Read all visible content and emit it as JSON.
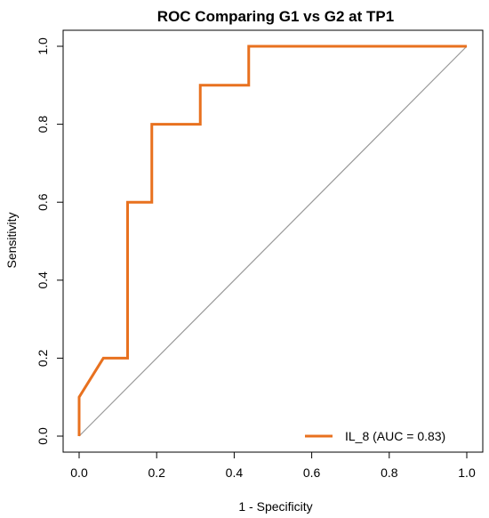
{
  "chart_data": {
    "type": "line",
    "title": "ROC Comparing G1 vs G2 at TP1",
    "xlabel": "1 - Specificity",
    "ylabel": "Sensitivity",
    "xlim": [
      0,
      1
    ],
    "ylim": [
      0,
      1
    ],
    "xticks": [
      "0.0",
      "0.2",
      "0.4",
      "0.6",
      "0.8",
      "1.0"
    ],
    "yticks": [
      "0.0",
      "0.2",
      "0.4",
      "0.6",
      "0.8",
      "1.0"
    ],
    "grid": false,
    "legend_position": "bottom-right",
    "series": [
      {
        "name": "IL_8 (AUC = 0.83)",
        "color": "#e8711f",
        "x": [
          0,
          0,
          0.0625,
          0.125,
          0.125,
          0.1875,
          0.1875,
          0.3125,
          0.3125,
          0.4375,
          0.4375,
          1.0
        ],
        "y": [
          0,
          0.1,
          0.2,
          0.2,
          0.6,
          0.6,
          0.8,
          0.8,
          0.9,
          0.9,
          1.0,
          1.0
        ]
      }
    ],
    "reference_line": {
      "x": [
        0,
        1
      ],
      "y": [
        0,
        1
      ],
      "color": "#999999"
    }
  }
}
